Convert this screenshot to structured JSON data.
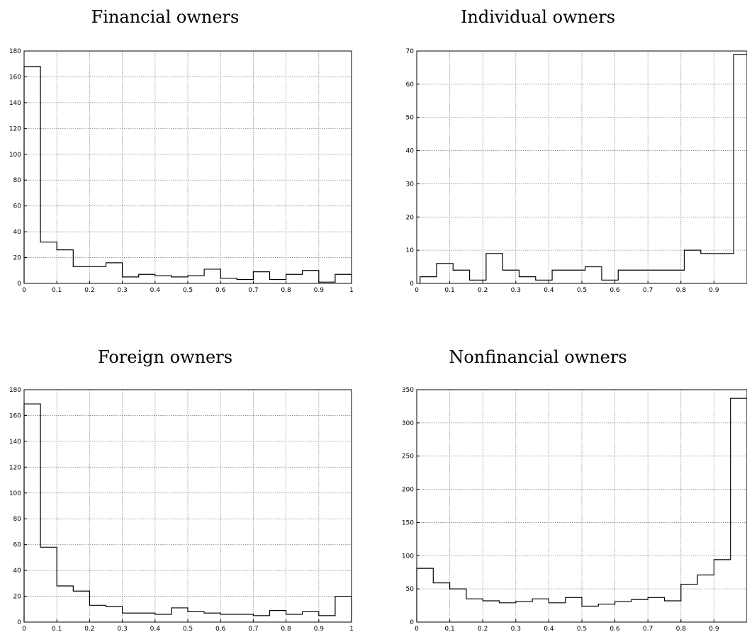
{
  "chart_data": [
    {
      "type": "bar",
      "title": "Financial owners",
      "xlim": [
        0,
        1
      ],
      "ylim": [
        0,
        180
      ],
      "xticks": [
        0,
        0.1,
        0.2,
        0.3,
        0.4,
        0.5,
        0.6,
        0.7,
        0.8,
        0.9,
        1
      ],
      "xtick_labels": [
        "0",
        "0.1",
        "0.2",
        "0.3",
        "0.4",
        "0.5",
        "0.6",
        "0.7",
        "0.8",
        "0.9",
        "1"
      ],
      "yticks": [
        0,
        20,
        40,
        60,
        80,
        100,
        120,
        140,
        160,
        180
      ],
      "ytick_labels": [
        "0",
        "20",
        "40",
        "60",
        "80",
        "100",
        "120",
        "140",
        "160",
        "180"
      ],
      "grid": true,
      "bin_edges": [
        0,
        0.05,
        0.1,
        0.15,
        0.2,
        0.25,
        0.3,
        0.35,
        0.4,
        0.45,
        0.5,
        0.55,
        0.6,
        0.65,
        0.7,
        0.75,
        0.8,
        0.85,
        0.9,
        0.95,
        1.0
      ],
      "values": [
        168,
        32,
        26,
        13,
        13,
        16,
        5,
        7,
        6,
        5,
        6,
        11,
        4,
        3,
        9,
        3,
        7,
        10,
        1,
        7
      ]
    },
    {
      "type": "bar",
      "title": "Individual owners",
      "xlim": [
        0,
        1
      ],
      "ylim": [
        0,
        70
      ],
      "xticks": [
        0,
        0.1,
        0.2,
        0.3,
        0.4,
        0.5,
        0.6,
        0.7,
        0.8,
        0.9
      ],
      "xtick_labels": [
        "0",
        "0.1",
        "0.2",
        "0.3",
        "0.4",
        "0.5",
        "0.6",
        "0.7",
        "0.8",
        "0.9"
      ],
      "yticks": [
        0,
        10,
        20,
        30,
        40,
        50,
        60,
        70
      ],
      "ytick_labels": [
        "0",
        "10",
        "20",
        "30",
        "40",
        "50",
        "60",
        "70"
      ],
      "grid": true,
      "bin_edges": [
        0.01,
        0.06,
        0.11,
        0.16,
        0.21,
        0.26,
        0.31,
        0.36,
        0.41,
        0.46,
        0.51,
        0.56,
        0.61,
        0.66,
        0.71,
        0.76,
        0.81,
        0.86,
        0.91,
        0.96,
        1.01
      ],
      "values": [
        2,
        6,
        4,
        1,
        9,
        4,
        2,
        1,
        4,
        4,
        5,
        1,
        4,
        4,
        4,
        4,
        10,
        9,
        9,
        69
      ]
    },
    {
      "type": "bar",
      "title": "Foreign owners",
      "xlim": [
        0,
        1
      ],
      "ylim": [
        0,
        180
      ],
      "xticks": [
        0,
        0.1,
        0.2,
        0.3,
        0.4,
        0.5,
        0.6,
        0.7,
        0.8,
        0.9,
        1
      ],
      "xtick_labels": [
        "0",
        "0.1",
        "0.2",
        "0.3",
        "0.4",
        "0.5",
        "0.6",
        "0.7",
        "0.8",
        "0.9",
        "1"
      ],
      "yticks": [
        0,
        20,
        40,
        60,
        80,
        100,
        120,
        140,
        160,
        180
      ],
      "ytick_labels": [
        "0",
        "20",
        "40",
        "60",
        "80",
        "100",
        "120",
        "140",
        "160",
        "180"
      ],
      "grid": true,
      "bin_edges": [
        0,
        0.05,
        0.1,
        0.15,
        0.2,
        0.25,
        0.3,
        0.35,
        0.4,
        0.45,
        0.5,
        0.55,
        0.6,
        0.65,
        0.7,
        0.75,
        0.8,
        0.85,
        0.9,
        0.95,
        1.0
      ],
      "values": [
        169,
        58,
        28,
        24,
        13,
        12,
        7,
        7,
        6,
        11,
        8,
        7,
        6,
        6,
        5,
        9,
        6,
        8,
        5,
        20
      ]
    },
    {
      "type": "bar",
      "title": "Nonfinancial owners",
      "xlim": [
        0,
        1
      ],
      "ylim": [
        0,
        350
      ],
      "xticks": [
        0,
        0.1,
        0.2,
        0.3,
        0.4,
        0.5,
        0.6,
        0.7,
        0.8,
        0.9
      ],
      "xtick_labels": [
        "0",
        "0.1",
        "0.2",
        "0.3",
        "0.4",
        "0.5",
        "0.6",
        "0.7",
        "0.8",
        "0.9"
      ],
      "yticks": [
        0,
        50,
        100,
        150,
        200,
        250,
        300,
        350
      ],
      "ytick_labels": [
        "0",
        "50",
        "100",
        "150",
        "200",
        "250",
        "300",
        "350"
      ],
      "grid": true,
      "bin_edges": [
        0,
        0.05,
        0.1,
        0.15,
        0.2,
        0.25,
        0.3,
        0.35,
        0.4,
        0.45,
        0.5,
        0.55,
        0.6,
        0.65,
        0.7,
        0.75,
        0.8,
        0.85,
        0.9,
        0.95,
        1.0
      ],
      "values": [
        81,
        59,
        50,
        35,
        32,
        29,
        31,
        35,
        29,
        37,
        24,
        27,
        31,
        34,
        37,
        32,
        57,
        71,
        94,
        337
      ]
    }
  ]
}
